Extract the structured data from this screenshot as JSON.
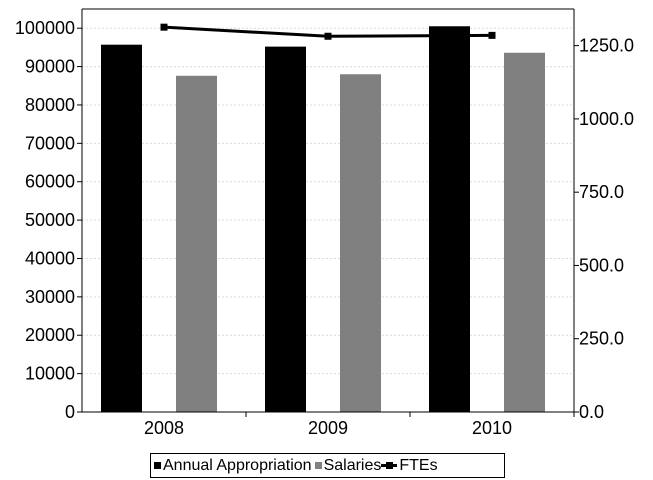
{
  "chart_data": {
    "type": "bar",
    "categories": [
      "2008",
      "2009",
      "2010"
    ],
    "series": [
      {
        "name": "Annual Appropriation",
        "type": "bar",
        "axis": "left",
        "color": "#000000",
        "values": [
          95700,
          95200,
          100500
        ]
      },
      {
        "name": "Salaries",
        "type": "bar",
        "axis": "left",
        "color": "#808080",
        "values": [
          87600,
          88000,
          93600
        ]
      },
      {
        "name": "FTEs",
        "type": "line",
        "axis": "right",
        "color": "#000000",
        "values": [
          1313,
          1282,
          1285
        ]
      }
    ],
    "y_left": {
      "ticks": [
        "0",
        "10000",
        "20000",
        "30000",
        "40000",
        "50000",
        "60000",
        "70000",
        "80000",
        "90000",
        "100000"
      ],
      "ylim": [
        0,
        105000
      ]
    },
    "y_right": {
      "ticks": [
        "0.0",
        "250.0",
        "500.0",
        "750.0",
        "1000.0",
        "1250.0"
      ],
      "ylim": [
        0,
        1375
      ]
    },
    "grid": true,
    "legend_position": "bottom"
  }
}
